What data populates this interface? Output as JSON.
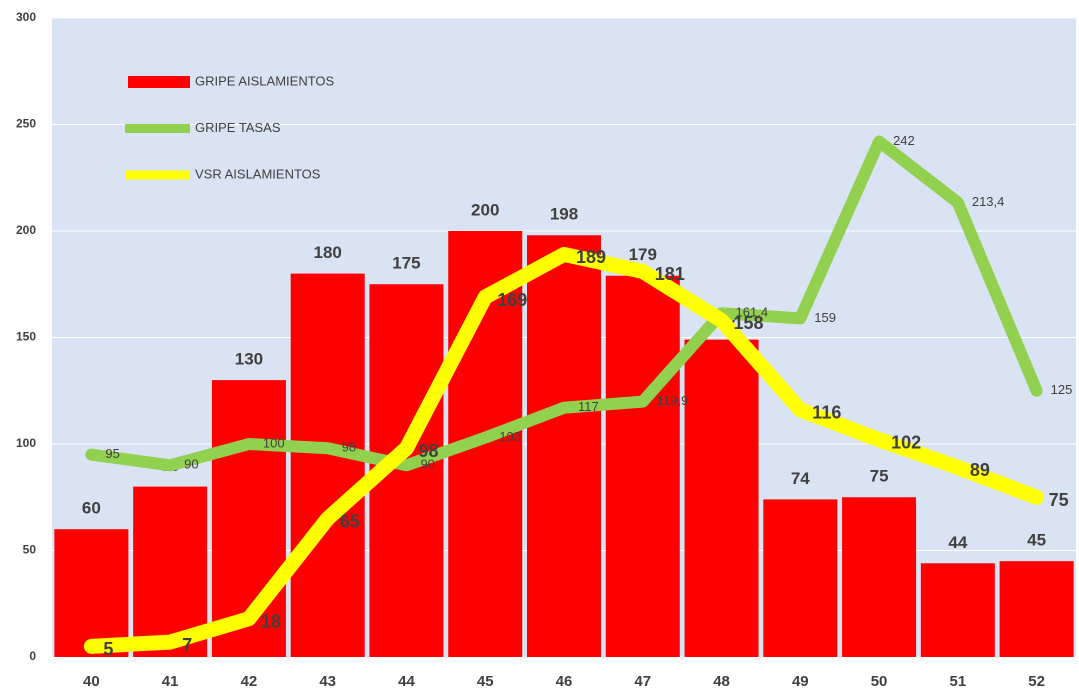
{
  "chart_data": {
    "type": "bar",
    "categories": [
      "40",
      "41",
      "42",
      "43",
      "44",
      "45",
      "46",
      "47",
      "48",
      "49",
      "50",
      "51",
      "52"
    ],
    "series": [
      {
        "name": "GRIPE AISLAMIENTOS",
        "type": "bar",
        "color": "#ff0000",
        "values": [
          60,
          80,
          130,
          180,
          175,
          200,
          198,
          179,
          149,
          74,
          75,
          44,
          45
        ]
      },
      {
        "name": "GRIPE TASAS",
        "type": "line",
        "color": "#92d050",
        "values": [
          95,
          90,
          100,
          98,
          90,
          103,
          117,
          119.9,
          161.4,
          159,
          242,
          213.4,
          125
        ],
        "value_labels": [
          "95",
          "90",
          "100",
          "98",
          "90",
          "103",
          "117",
          "119,9",
          "161,4",
          "159",
          "242",
          "213,4",
          "125"
        ]
      },
      {
        "name": "VSR AISLAMIENTOS",
        "type": "line",
        "color": "#ffff00",
        "values": [
          5,
          7,
          18,
          65,
          98,
          169,
          189,
          181,
          158,
          116,
          102,
          89,
          75
        ]
      }
    ],
    "ylim": [
      0,
      300
    ],
    "yticks": [
      0,
      50,
      100,
      150,
      200,
      250,
      300
    ],
    "grid": true
  }
}
